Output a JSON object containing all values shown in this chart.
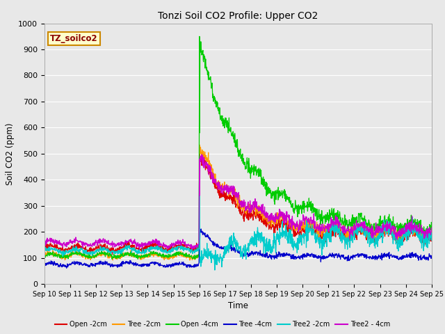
{
  "title": "Tonzi Soil CO2 Profile: Upper CO2",
  "xlabel": "Time",
  "ylabel": "Soil CO2 (ppm)",
  "ylim": [
    0,
    1000
  ],
  "xlim": [
    0,
    15
  ],
  "fig_bg_color": "#e8e8e8",
  "plot_bg_color": "#e8e8e8",
  "legend_label": "TZ_soilco2",
  "x_tick_labels": [
    "Sep 10",
    "Sep 11",
    "Sep 12",
    "Sep 13",
    "Sep 14",
    "Sep 15",
    "Sep 16",
    "Sep 17",
    "Sep 18",
    "Sep 19",
    "Sep 20",
    "Sep 21",
    "Sep 22",
    "Sep 23",
    "Sep 24",
    "Sep 25"
  ],
  "grid_color": "#ffffff",
  "series": {
    "Open -2cm": {
      "color": "#dd0000",
      "lw": 0.9
    },
    "Tree -2cm": {
      "color": "#ff9900",
      "lw": 0.9
    },
    "Open -4cm": {
      "color": "#00cc00",
      "lw": 0.9
    },
    "Tree -4cm": {
      "color": "#0000cc",
      "lw": 0.9
    },
    "Tree2 -2cm": {
      "color": "#00cccc",
      "lw": 0.9
    },
    "Tree2 - 4cm": {
      "color": "#cc00cc",
      "lw": 0.9
    }
  }
}
